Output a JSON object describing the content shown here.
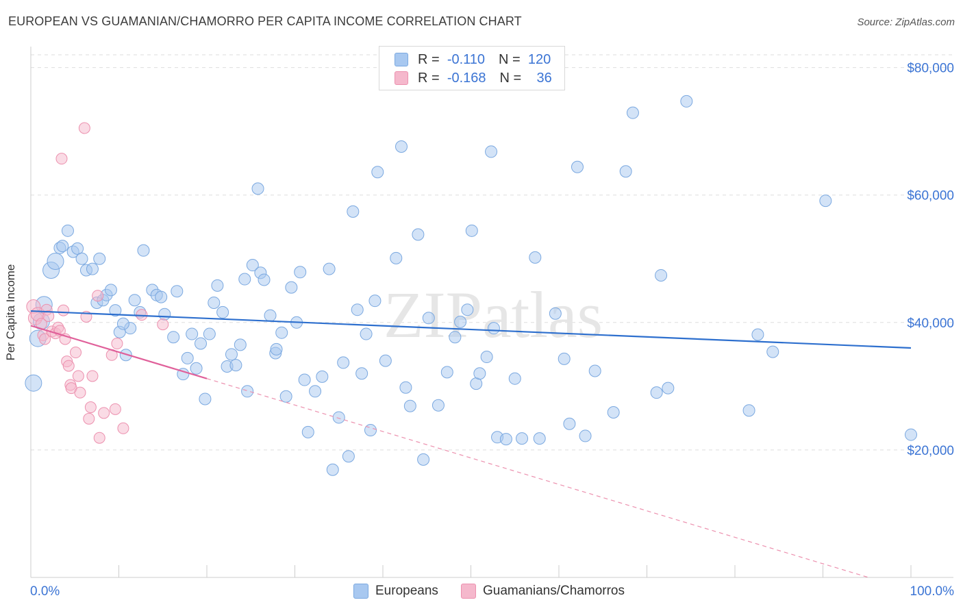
{
  "title": "EUROPEAN VS GUAMANIAN/CHAMORRO PER CAPITA INCOME CORRELATION CHART",
  "source": "Source: ZipAtlas.com",
  "watermark": "ZIPatlas",
  "legend": {
    "r_label": "R =",
    "n_label": "N =",
    "rows": [
      {
        "r": "-0.110",
        "n": "120",
        "color": "#a8c8f0"
      },
      {
        "r": "-0.168",
        "n": "36",
        "color": "#f5b8cc"
      }
    ]
  },
  "bottom_legend": [
    {
      "label": "Europeans",
      "color": "#a8c8f0"
    },
    {
      "label": "Guamanians/Chamorros",
      "color": "#f5b8cc"
    }
  ],
  "colors": {
    "blue_point": "#a8c8f0",
    "blue_stroke": "#7aa8e0",
    "blue_line": "#2d6fce",
    "pink_point": "#f5b8cc",
    "pink_stroke": "#ec90ae",
    "pink_line": "#e0609a",
    "axis_text": "#3b74d4",
    "grid": "#dddddd"
  },
  "chart_data": {
    "type": "scatter",
    "title": "EUROPEAN VS GUAMANIAN/CHAMORRO PER CAPITA INCOME CORRELATION CHART",
    "xlabel": "",
    "ylabel": "Per Capita Income",
    "x_tick_labels": [
      "0.0%",
      "100.0%"
    ],
    "y_tick_labels": [
      "$20,000",
      "$40,000",
      "$60,000",
      "$80,000"
    ],
    "y_ticks": [
      20000,
      40000,
      60000,
      80000
    ],
    "xlim": [
      0,
      100
    ],
    "ylim": [
      0,
      82000
    ],
    "grid": true,
    "series": [
      {
        "name": "Europeans",
        "R": -0.11,
        "N": 120,
        "trend": {
          "x": [
            0,
            100
          ],
          "y": [
            41800,
            36000
          ]
        },
        "points": [
          [
            0.3,
            30500
          ],
          [
            0.8,
            37500
          ],
          [
            1.2,
            40200
          ],
          [
            1.5,
            42800
          ],
          [
            2.3,
            48200
          ],
          [
            2.8,
            49600
          ],
          [
            3.3,
            51700
          ],
          [
            3.6,
            52000
          ],
          [
            4.2,
            54400
          ],
          [
            4.8,
            51100
          ],
          [
            5.3,
            51600
          ],
          [
            5.8,
            50000
          ],
          [
            6.3,
            48200
          ],
          [
            7.0,
            48400
          ],
          [
            7.5,
            43100
          ],
          [
            7.8,
            50000
          ],
          [
            8.2,
            43500
          ],
          [
            8.6,
            44300
          ],
          [
            9.1,
            45100
          ],
          [
            9.6,
            41900
          ],
          [
            10.1,
            38500
          ],
          [
            10.8,
            34900
          ],
          [
            11.3,
            39100
          ],
          [
            11.8,
            43500
          ],
          [
            12.4,
            41600
          ],
          [
            12.8,
            51300
          ],
          [
            13.8,
            45100
          ],
          [
            14.3,
            44300
          ],
          [
            14.8,
            44000
          ],
          [
            15.2,
            41300
          ],
          [
            16.2,
            37700
          ],
          [
            16.6,
            44900
          ],
          [
            17.3,
            31900
          ],
          [
            17.8,
            34400
          ],
          [
            18.3,
            38200
          ],
          [
            18.8,
            32800
          ],
          [
            19.3,
            36700
          ],
          [
            19.8,
            28000
          ],
          [
            20.3,
            38200
          ],
          [
            20.8,
            43100
          ],
          [
            21.2,
            45800
          ],
          [
            21.8,
            41600
          ],
          [
            22.3,
            33100
          ],
          [
            22.8,
            35000
          ],
          [
            23.3,
            33300
          ],
          [
            23.8,
            36500
          ],
          [
            24.3,
            46800
          ],
          [
            24.6,
            29200
          ],
          [
            25.2,
            49000
          ],
          [
            25.8,
            61000
          ],
          [
            26.1,
            47800
          ],
          [
            26.5,
            46700
          ],
          [
            27.2,
            41100
          ],
          [
            27.8,
            35200
          ],
          [
            27.9,
            35800
          ],
          [
            28.5,
            38400
          ],
          [
            29.0,
            28400
          ],
          [
            29.6,
            45500
          ],
          [
            30.2,
            40000
          ],
          [
            30.6,
            47900
          ],
          [
            31.1,
            31000
          ],
          [
            31.5,
            22800
          ],
          [
            32.3,
            29200
          ],
          [
            33.1,
            31500
          ],
          [
            33.9,
            48400
          ],
          [
            34.3,
            16900
          ],
          [
            35.0,
            25100
          ],
          [
            35.5,
            33700
          ],
          [
            36.1,
            19000
          ],
          [
            36.6,
            57400
          ],
          [
            37.1,
            42000
          ],
          [
            37.6,
            32000
          ],
          [
            38.1,
            38200
          ],
          [
            38.6,
            23100
          ],
          [
            39.1,
            43400
          ],
          [
            39.4,
            63600
          ],
          [
            40.3,
            34000
          ],
          [
            41.5,
            50100
          ],
          [
            42.1,
            67600
          ],
          [
            42.6,
            29800
          ],
          [
            43.1,
            26900
          ],
          [
            44.0,
            53800
          ],
          [
            44.6,
            18500
          ],
          [
            45.2,
            40700
          ],
          [
            46.3,
            27000
          ],
          [
            47.3,
            32200
          ],
          [
            48.2,
            37700
          ],
          [
            48.8,
            40100
          ],
          [
            49.6,
            42000
          ],
          [
            50.1,
            54400
          ],
          [
            50.6,
            30400
          ],
          [
            51.0,
            32000
          ],
          [
            51.8,
            34600
          ],
          [
            52.3,
            66800
          ],
          [
            52.6,
            39100
          ],
          [
            53.0,
            22000
          ],
          [
            54.0,
            21700
          ],
          [
            55.0,
            31200
          ],
          [
            55.8,
            21800
          ],
          [
            57.3,
            50200
          ],
          [
            57.8,
            21800
          ],
          [
            59.6,
            41400
          ],
          [
            60.6,
            34300
          ],
          [
            61.2,
            24100
          ],
          [
            62.1,
            64400
          ],
          [
            63.0,
            22200
          ],
          [
            64.1,
            32400
          ],
          [
            66.2,
            25900
          ],
          [
            67.6,
            63700
          ],
          [
            68.4,
            72900
          ],
          [
            71.1,
            29000
          ],
          [
            71.6,
            47400
          ],
          [
            72.4,
            29700
          ],
          [
            74.5,
            74700
          ],
          [
            81.6,
            26200
          ],
          [
            82.6,
            38100
          ],
          [
            84.3,
            35400
          ],
          [
            90.3,
            59100
          ],
          [
            100.0,
            22400
          ],
          [
            10.5,
            39800
          ]
        ]
      },
      {
        "name": "Guamanians/Chamorros",
        "R": -0.168,
        "N": 36,
        "trend": {
          "x": [
            0,
            20
          ],
          "y": [
            39500,
            31200
          ]
        },
        "trend_extended": {
          "x": [
            20,
            100
          ],
          "y": [
            31200,
            -2000
          ]
        },
        "points": [
          [
            0.3,
            42500
          ],
          [
            0.5,
            40700
          ],
          [
            0.8,
            41300
          ],
          [
            1.2,
            39800
          ],
          [
            1.4,
            38000
          ],
          [
            1.6,
            37400
          ],
          [
            1.8,
            42000
          ],
          [
            2.0,
            41000
          ],
          [
            2.4,
            38600
          ],
          [
            2.8,
            38300
          ],
          [
            3.1,
            39200
          ],
          [
            3.3,
            38700
          ],
          [
            3.5,
            65700
          ],
          [
            3.7,
            41900
          ],
          [
            3.9,
            37400
          ],
          [
            4.1,
            33900
          ],
          [
            4.3,
            33200
          ],
          [
            4.5,
            30200
          ],
          [
            4.6,
            29700
          ],
          [
            5.1,
            35300
          ],
          [
            5.4,
            31600
          ],
          [
            5.6,
            29000
          ],
          [
            6.1,
            70500
          ],
          [
            6.3,
            40900
          ],
          [
            6.6,
            24900
          ],
          [
            6.8,
            26700
          ],
          [
            7.0,
            31600
          ],
          [
            7.6,
            44200
          ],
          [
            7.8,
            21900
          ],
          [
            8.3,
            25800
          ],
          [
            9.2,
            34900
          ],
          [
            9.6,
            26400
          ],
          [
            9.8,
            36700
          ],
          [
            10.5,
            23400
          ],
          [
            12.6,
            41200
          ],
          [
            15.0,
            39700
          ]
        ]
      }
    ]
  }
}
